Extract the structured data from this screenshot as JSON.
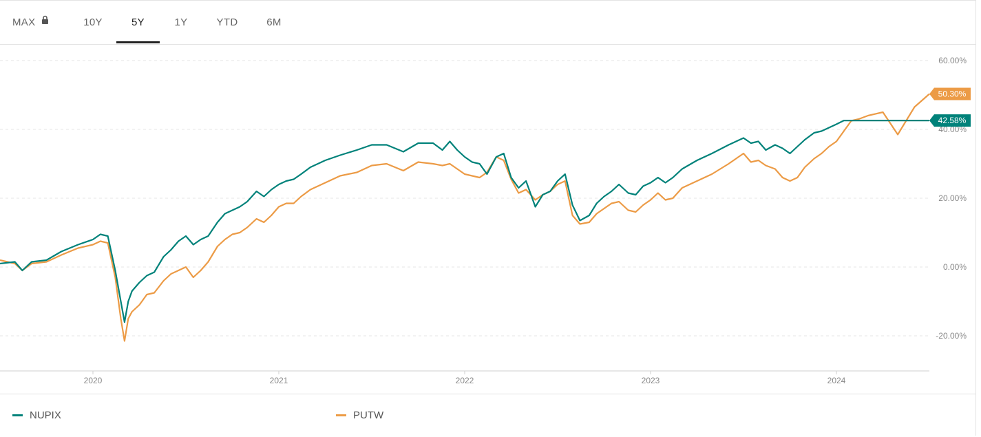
{
  "tabs": [
    {
      "label": "MAX",
      "locked": true,
      "icon": "lock-icon",
      "active": false
    },
    {
      "label": "10Y",
      "active": false
    },
    {
      "label": "5Y",
      "active": true
    },
    {
      "label": "1Y",
      "active": false
    },
    {
      "label": "YTD",
      "active": false
    },
    {
      "label": "6M",
      "active": false
    }
  ],
  "chart_data": {
    "type": "line",
    "title": "",
    "xlabel": "",
    "ylabel": "",
    "x_ticks": [
      "2020",
      "2021",
      "2022",
      "2023",
      "2024"
    ],
    "y_ticks": [
      "60.00%",
      "40.00%",
      "20.00%",
      "0.00%",
      "-20.00%"
    ],
    "ylim": [
      -30,
      66
    ],
    "xlim": [
      2019.5,
      2024.5
    ],
    "grid": "horizontal dashed",
    "legend_placement": "bottom",
    "end_labels": [
      {
        "series": "PUTW",
        "text": "50.30%",
        "value": 50.3
      },
      {
        "series": "NUPIX",
        "text": "42.58%",
        "value": 42.58
      }
    ],
    "series": [
      {
        "name": "NUPIX",
        "color": "#00827a",
        "x": [
          2019.5,
          2019.58,
          2019.62,
          2019.67,
          2019.75,
          2019.83,
          2019.92,
          2020.0,
          2020.04,
          2020.08,
          2020.12,
          2020.15,
          2020.17,
          2020.19,
          2020.21,
          2020.25,
          2020.29,
          2020.33,
          2020.38,
          2020.42,
          2020.46,
          2020.5,
          2020.54,
          2020.58,
          2020.62,
          2020.67,
          2020.71,
          2020.75,
          2020.79,
          2020.83,
          2020.88,
          2020.92,
          2020.96,
          2021.0,
          2021.04,
          2021.08,
          2021.12,
          2021.17,
          2021.25,
          2021.33,
          2021.42,
          2021.5,
          2021.58,
          2021.67,
          2021.75,
          2021.83,
          2021.88,
          2021.92,
          2021.96,
          2022.0,
          2022.04,
          2022.08,
          2022.12,
          2022.17,
          2022.21,
          2022.25,
          2022.29,
          2022.33,
          2022.38,
          2022.42,
          2022.46,
          2022.5,
          2022.54,
          2022.58,
          2022.62,
          2022.67,
          2022.71,
          2022.75,
          2022.79,
          2022.83,
          2022.88,
          2022.92,
          2022.96,
          2023.0,
          2023.04,
          2023.08,
          2023.12,
          2023.17,
          2023.25,
          2023.33,
          2023.42,
          2023.46,
          2023.5,
          2023.54,
          2023.58,
          2023.62,
          2023.67,
          2023.71,
          2023.75,
          2023.79,
          2023.83,
          2023.88,
          2023.92,
          2023.96,
          2024.0,
          2024.04,
          2024.08,
          2024.12,
          2024.17,
          2024.25,
          2024.33,
          2024.42,
          2024.5
        ],
        "values": [
          1.0,
          1.5,
          -1.0,
          1.5,
          2.0,
          4.5,
          6.5,
          8.0,
          9.5,
          9.0,
          -1.0,
          -10.0,
          -16.0,
          -10.0,
          -7.0,
          -4.5,
          -2.5,
          -1.5,
          3.0,
          5.0,
          7.5,
          9.0,
          6.5,
          8.0,
          9.0,
          13.0,
          15.5,
          16.5,
          17.5,
          19.0,
          22.0,
          20.5,
          22.5,
          24.0,
          25.0,
          25.5,
          27.0,
          29.0,
          31.0,
          32.5,
          34.0,
          35.5,
          35.5,
          33.5,
          36.0,
          36.0,
          34.0,
          36.5,
          34.0,
          32.0,
          30.5,
          30.0,
          27.0,
          32.0,
          33.0,
          26.0,
          23.0,
          25.0,
          17.5,
          21.0,
          22.0,
          25.0,
          27.0,
          18.0,
          13.5,
          15.0,
          18.5,
          20.5,
          22.0,
          24.0,
          21.5,
          21.0,
          23.5,
          24.5,
          26.0,
          24.5,
          26.0,
          28.5,
          31.0,
          33.0,
          35.5,
          36.5,
          37.5,
          36.0,
          36.5,
          34.0,
          35.5,
          34.5,
          33.0,
          35.0,
          37.0,
          39.0,
          39.5,
          40.5,
          41.5,
          42.58,
          42.58,
          42.58,
          42.58,
          42.58,
          42.58,
          42.58,
          42.58
        ]
      },
      {
        "name": "PUTW",
        "color": "#ec9b46",
        "x": [
          2019.5,
          2019.58,
          2019.62,
          2019.67,
          2019.75,
          2019.83,
          2019.92,
          2020.0,
          2020.04,
          2020.08,
          2020.12,
          2020.15,
          2020.17,
          2020.19,
          2020.21,
          2020.25,
          2020.29,
          2020.33,
          2020.38,
          2020.42,
          2020.46,
          2020.5,
          2020.54,
          2020.58,
          2020.62,
          2020.67,
          2020.71,
          2020.75,
          2020.79,
          2020.83,
          2020.88,
          2020.92,
          2020.96,
          2021.0,
          2021.04,
          2021.08,
          2021.12,
          2021.17,
          2021.25,
          2021.33,
          2021.42,
          2021.5,
          2021.58,
          2021.67,
          2021.75,
          2021.83,
          2021.88,
          2021.92,
          2021.96,
          2022.0,
          2022.04,
          2022.08,
          2022.12,
          2022.17,
          2022.21,
          2022.25,
          2022.29,
          2022.33,
          2022.38,
          2022.42,
          2022.46,
          2022.5,
          2022.54,
          2022.58,
          2022.62,
          2022.67,
          2022.71,
          2022.75,
          2022.79,
          2022.83,
          2022.88,
          2022.92,
          2022.96,
          2023.0,
          2023.04,
          2023.08,
          2023.12,
          2023.17,
          2023.25,
          2023.33,
          2023.42,
          2023.46,
          2023.5,
          2023.54,
          2023.58,
          2023.62,
          2023.67,
          2023.71,
          2023.75,
          2023.79,
          2023.83,
          2023.88,
          2023.92,
          2023.96,
          2024.0,
          2024.04,
          2024.08,
          2024.12,
          2024.17,
          2024.25,
          2024.33,
          2024.42,
          2024.5
        ],
        "values": [
          2.0,
          1.0,
          -1.0,
          1.0,
          1.5,
          3.5,
          5.5,
          6.5,
          7.5,
          7.0,
          -3.0,
          -15.0,
          -21.5,
          -15.0,
          -13.0,
          -11.0,
          -8.0,
          -7.5,
          -4.0,
          -2.0,
          -1.0,
          0.0,
          -3.0,
          -1.0,
          1.5,
          6.0,
          8.0,
          9.5,
          10.0,
          11.5,
          14.0,
          13.0,
          15.0,
          17.5,
          18.5,
          18.5,
          20.5,
          22.5,
          24.5,
          26.5,
          27.5,
          29.5,
          30.0,
          28.0,
          30.5,
          30.0,
          29.5,
          30.0,
          28.5,
          27.0,
          26.5,
          26.0,
          27.5,
          32.0,
          31.0,
          25.5,
          21.5,
          22.5,
          19.5,
          21.0,
          22.0,
          24.0,
          25.0,
          15.0,
          12.5,
          13.0,
          15.5,
          17.0,
          18.5,
          19.0,
          16.5,
          16.0,
          18.0,
          19.5,
          21.5,
          19.5,
          20.0,
          23.0,
          25.0,
          27.0,
          30.0,
          31.5,
          33.0,
          30.5,
          31.0,
          29.5,
          28.5,
          26.0,
          25.0,
          26.0,
          29.0,
          31.5,
          33.0,
          35.0,
          36.5,
          39.5,
          42.5,
          43.0,
          44.0,
          45.0,
          38.5,
          46.5,
          50.3
        ]
      }
    ]
  },
  "legend": [
    {
      "label": "NUPIX",
      "color": "#00827a"
    },
    {
      "label": "PUTW",
      "color": "#ec9b46"
    }
  ]
}
